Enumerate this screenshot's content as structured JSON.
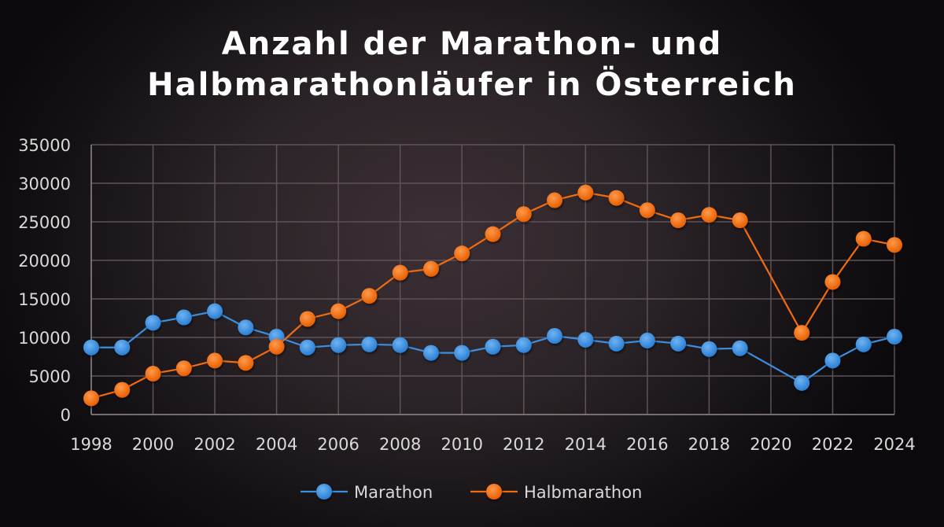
{
  "chart_data": {
    "type": "line",
    "title": [
      "Anzahl der Marathon- und",
      "Halbmarathonläufer in Österreich"
    ],
    "xlabel": "",
    "ylabel": "",
    "ylim": [
      0,
      35000
    ],
    "xlim": [
      1998,
      2024
    ],
    "yticks": [
      "0",
      "5000",
      "10000",
      "15000",
      "20000",
      "25000",
      "30000",
      "35000"
    ],
    "xticks": [
      "1998",
      "2000",
      "2002",
      "2004",
      "2006",
      "2008",
      "2010",
      "2012",
      "2014",
      "2016",
      "2018",
      "2020",
      "2022",
      "2024"
    ],
    "grid": true,
    "legend": "bottom",
    "x": [
      1998,
      1999,
      2000,
      2001,
      2002,
      2003,
      2004,
      2005,
      2006,
      2007,
      2008,
      2009,
      2010,
      2011,
      2012,
      2013,
      2014,
      2015,
      2016,
      2017,
      2018,
      2019,
      2021,
      2022,
      2023,
      2024
    ],
    "series": [
      {
        "name": "Marathon",
        "color": "#3a8fe0",
        "values": [
          8700,
          8700,
          11900,
          12600,
          13400,
          11300,
          10100,
          8700,
          9000,
          9100,
          9000,
          8000,
          8000,
          8800,
          9000,
          10200,
          9700,
          9200,
          9600,
          9200,
          8500,
          8600,
          4100,
          7000,
          9100,
          10100
        ]
      },
      {
        "name": "Halbmarathon",
        "color": "#f26b0f",
        "values": [
          2100,
          3200,
          5300,
          6000,
          7000,
          6700,
          8800,
          12400,
          13400,
          15400,
          18400,
          18900,
          20900,
          23400,
          26000,
          27800,
          28800,
          28100,
          26500,
          25200,
          25900,
          25200,
          10600,
          17200,
          22800,
          22000
        ]
      }
    ]
  }
}
